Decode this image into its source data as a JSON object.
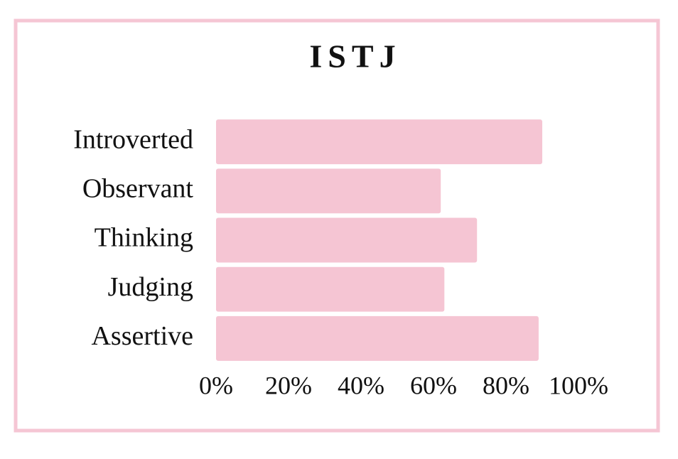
{
  "chart_data": {
    "type": "bar",
    "orientation": "horizontal",
    "title": "ISTJ",
    "categories": [
      "Introverted",
      "Observant",
      "Thinking",
      "Judging",
      "Assertive"
    ],
    "values": [
      90,
      62,
      72,
      63,
      89
    ],
    "color": "#f5c5d3",
    "border_color": "#f5c6d4",
    "xlim": [
      0,
      100
    ],
    "xticks": [
      {
        "value": 0,
        "label": "0%"
      },
      {
        "value": 20,
        "label": "20%"
      },
      {
        "value": 40,
        "label": "40%"
      },
      {
        "value": 60,
        "label": "60%"
      },
      {
        "value": 80,
        "label": "80%"
      },
      {
        "value": 100,
        "label": "100%"
      }
    ],
    "grid": false
  }
}
